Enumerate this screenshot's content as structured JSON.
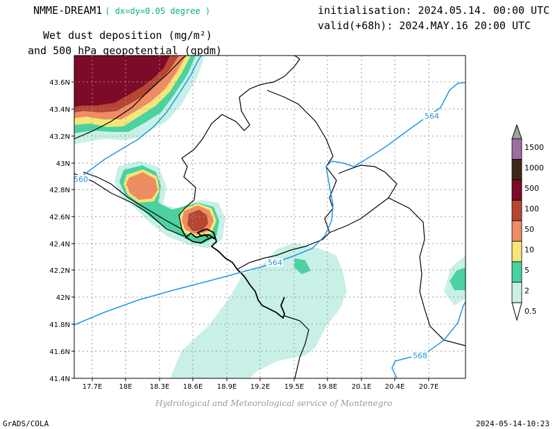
{
  "header": {
    "model": "NMME-DREAM1",
    "resolution": "( dx=dy=0.05 degree )",
    "init": "initialisation: 2024.05.14. 00:00 UTC",
    "valid": "valid(+68h): 2024.MAY.16 20:00 UTC",
    "variable_line1": "Wet dust deposition (mg/m²)",
    "variable_line2": "and 500 hPa geopotential (gpdm)"
  },
  "map": {
    "lon_labels": [
      "17.7E",
      "18E",
      "18.3E",
      "18.6E",
      "18.9E",
      "19.2E",
      "19.5E",
      "19.8E",
      "20.1E",
      "20.4E",
      "20.7E"
    ],
    "lat_labels": [
      "43.6N",
      "43.4N",
      "43.2N",
      "43N",
      "42.8N",
      "42.6N",
      "42.4N",
      "42.2N",
      "42N",
      "41.8N",
      "41.6N",
      "41.4N"
    ],
    "contour_labels": [
      "560",
      "564",
      "564",
      "568"
    ],
    "contour_color": "#1e96e6"
  },
  "legend": {
    "levels": [
      "1500",
      "1000",
      "500",
      "100",
      "50",
      "10",
      "5",
      "2",
      "0.5"
    ],
    "colors": [
      "#9c6ea0",
      "#3c2814",
      "#7d0a28",
      "#b44632",
      "#ee8c64",
      "#f5e678",
      "#4ad2a0",
      "#c8f0e6"
    ]
  },
  "credit": "Hydrological and Meteorological service of Montenegro",
  "footer": {
    "left": "GrADS/COLA",
    "right": "2024-05-14-10:23"
  }
}
